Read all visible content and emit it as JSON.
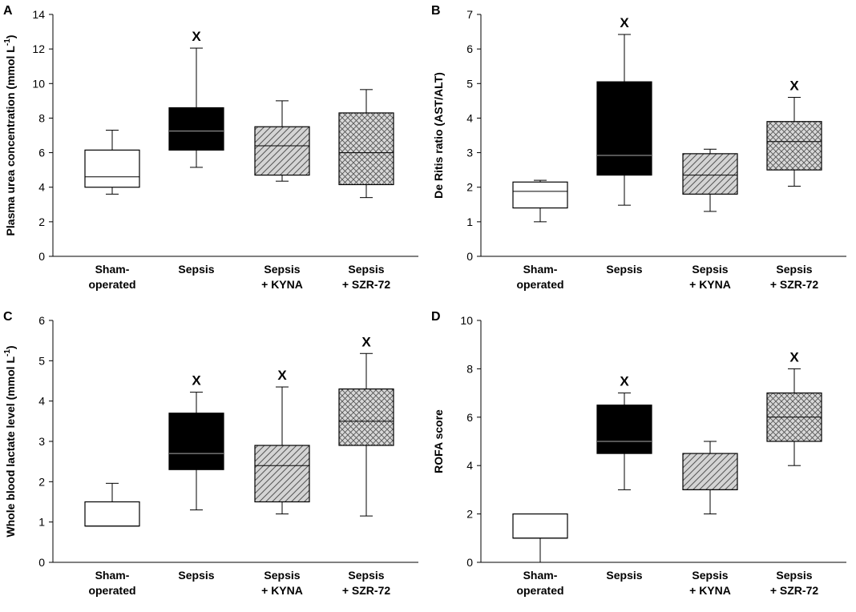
{
  "chart_data": [
    {
      "type": "box",
      "panel": "A",
      "ylabel": "Plasma urea concentration (mmol L",
      "ylabel_sup": "-1",
      "ylabel_end": ")",
      "ylim": [
        0,
        14
      ],
      "yticks": [
        0,
        2,
        4,
        6,
        8,
        10,
        12,
        14
      ],
      "categories": [
        [
          "Sham-",
          "operated"
        ],
        [
          "Sepsis"
        ],
        [
          "Sepsis",
          "+ KYNA"
        ],
        [
          "Sepsis",
          "+ SZR-72"
        ]
      ],
      "boxes": [
        {
          "min": 3.6,
          "q1": 4.0,
          "median": 4.6,
          "q3": 6.15,
          "max": 7.3,
          "fill": "white",
          "sig": ""
        },
        {
          "min": 5.15,
          "q1": 6.15,
          "median": 7.25,
          "q3": 8.6,
          "max": 12.05,
          "fill": "black",
          "sig": "X"
        },
        {
          "min": 4.35,
          "q1": 4.7,
          "median": 6.4,
          "q3": 7.5,
          "max": 9.0,
          "fill": "hatch",
          "sig": ""
        },
        {
          "min": 3.4,
          "q1": 4.15,
          "median": 6.0,
          "q3": 8.3,
          "max": 9.65,
          "fill": "cross",
          "sig": ""
        }
      ]
    },
    {
      "type": "box",
      "panel": "B",
      "ylabel": "De Ritis ratio (AST/ALT)",
      "ylabel_sup": "",
      "ylabel_end": "",
      "ylim": [
        0,
        7
      ],
      "yticks": [
        0,
        1,
        2,
        3,
        4,
        5,
        6,
        7
      ],
      "categories": [
        [
          "Sham-",
          "operated"
        ],
        [
          "Sepsis"
        ],
        [
          "Sepsis",
          "+ KYNA"
        ],
        [
          "Sepsis",
          "+ SZR-72"
        ]
      ],
      "boxes": [
        {
          "min": 1.0,
          "q1": 1.4,
          "median": 1.88,
          "q3": 2.15,
          "max": 2.2,
          "fill": "white",
          "sig": ""
        },
        {
          "min": 1.48,
          "q1": 2.35,
          "median": 2.92,
          "q3": 5.05,
          "max": 6.42,
          "fill": "black",
          "sig": "X"
        },
        {
          "min": 1.3,
          "q1": 1.8,
          "median": 2.35,
          "q3": 2.97,
          "max": 3.1,
          "fill": "hatch",
          "sig": ""
        },
        {
          "min": 2.03,
          "q1": 2.5,
          "median": 3.32,
          "q3": 3.9,
          "max": 4.6,
          "fill": "cross",
          "sig": "X"
        }
      ]
    },
    {
      "type": "box",
      "panel": "C",
      "ylabel": "Whole blood lactate level (mmol L",
      "ylabel_sup": "-1",
      "ylabel_end": ")",
      "ylim": [
        0,
        6
      ],
      "yticks": [
        0,
        1,
        2,
        3,
        4,
        5,
        6
      ],
      "categories": [
        [
          "Sham-",
          "operated"
        ],
        [
          "Sepsis"
        ],
        [
          "Sepsis",
          "+ KYNA"
        ],
        [
          "Sepsis",
          "+ SZR-72"
        ]
      ],
      "boxes": [
        {
          "min": 0.9,
          "q1": 0.9,
          "median": 0.9,
          "q3": 1.5,
          "max": 1.96,
          "fill": "white",
          "sig": ""
        },
        {
          "min": 1.3,
          "q1": 2.3,
          "median": 2.7,
          "q3": 3.7,
          "max": 4.22,
          "fill": "black",
          "sig": "X"
        },
        {
          "min": 1.2,
          "q1": 1.5,
          "median": 2.4,
          "q3": 2.9,
          "max": 4.35,
          "fill": "hatch",
          "sig": "X"
        },
        {
          "min": 1.15,
          "q1": 2.9,
          "median": 3.5,
          "q3": 4.3,
          "max": 5.18,
          "fill": "cross",
          "sig": "X"
        }
      ]
    },
    {
      "type": "box",
      "panel": "D",
      "ylabel": "ROFA score",
      "ylabel_sup": "",
      "ylabel_end": "",
      "ylim": [
        0,
        10
      ],
      "yticks": [
        0,
        2,
        4,
        6,
        8,
        10
      ],
      "categories": [
        [
          "Sham-",
          "operated"
        ],
        [
          "Sepsis"
        ],
        [
          "Sepsis",
          "+ KYNA"
        ],
        [
          "Sepsis",
          "+ SZR-72"
        ]
      ],
      "boxes": [
        {
          "min": 0.0,
          "q1": 1.0,
          "median": 1.0,
          "q3": 2.0,
          "max": 2.0,
          "fill": "white",
          "sig": ""
        },
        {
          "min": 3.0,
          "q1": 4.5,
          "median": 5.0,
          "q3": 6.5,
          "max": 7.0,
          "fill": "black",
          "sig": "X"
        },
        {
          "min": 2.0,
          "q1": 3.0,
          "median": 3.0,
          "q3": 4.5,
          "max": 5.0,
          "fill": "hatch",
          "sig": ""
        },
        {
          "min": 4.0,
          "q1": 5.0,
          "median": 6.0,
          "q3": 7.0,
          "max": 8.0,
          "fill": "cross",
          "sig": "X"
        }
      ]
    }
  ]
}
